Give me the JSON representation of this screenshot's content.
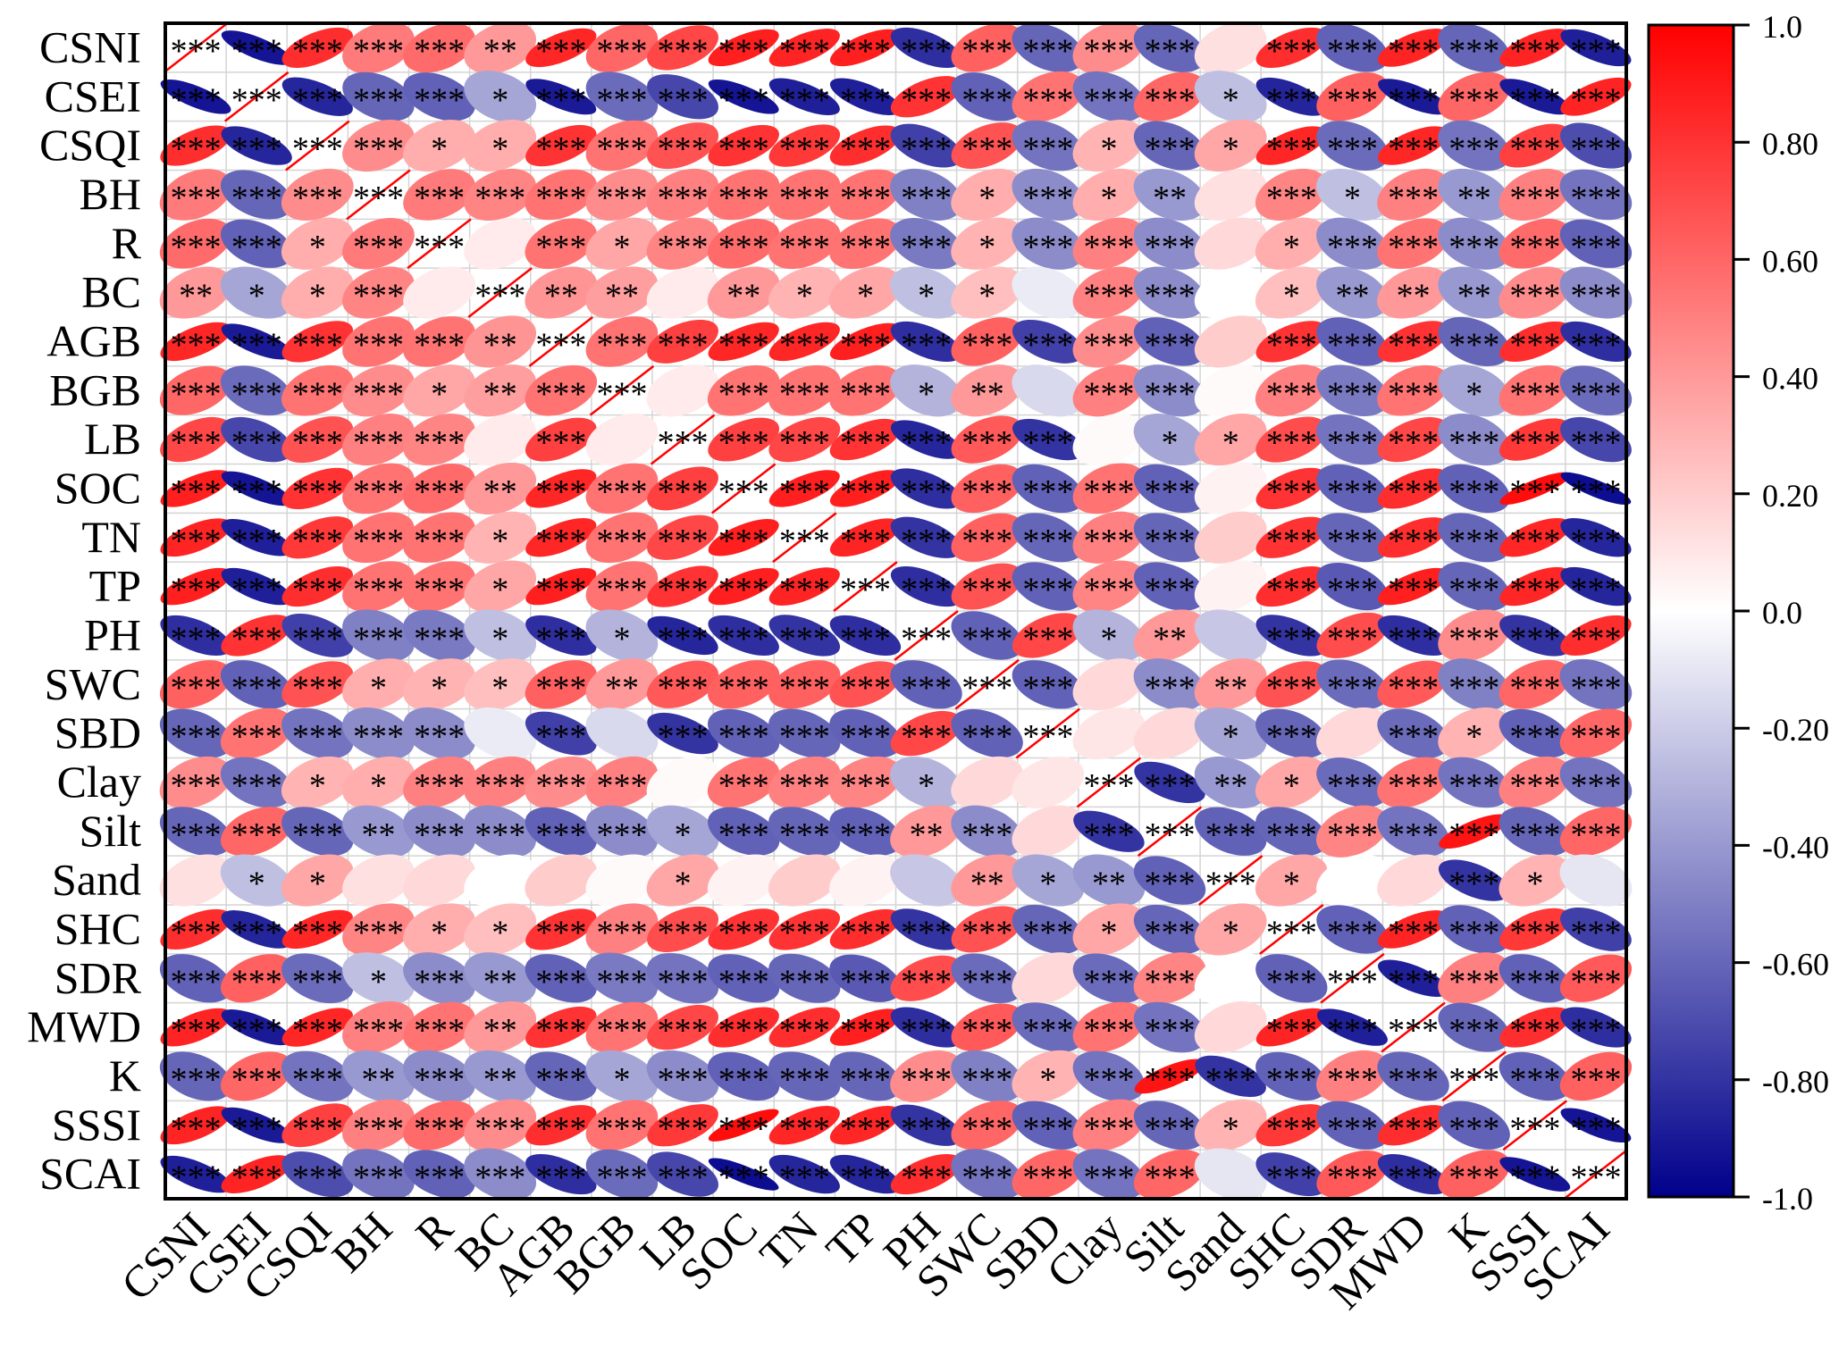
{
  "chart_data": {
    "type": "heatmap",
    "style": "correlation ellipse matrix",
    "variables": [
      "CSNI",
      "CSEI",
      "CSQI",
      "BH",
      "R",
      "BC",
      "AGB",
      "BGB",
      "LB",
      "SOC",
      "TN",
      "TP",
      "PH",
      "SWC",
      "SBD",
      "Clay",
      "Silt",
      "Sand",
      "SHC",
      "SDR",
      "MWD",
      "K",
      "SSSI",
      "SCAI"
    ],
    "colorbar": {
      "ticks": [
        "1.0",
        "0.80",
        "0.60",
        "0.40",
        "0.20",
        "0.0",
        "-0.20",
        "-0.40",
        "-0.60",
        "-0.80",
        "-1.0"
      ],
      "range": [
        -1.0,
        1.0
      ],
      "high_color": "#ff0000",
      "mid_color": "#ffffff",
      "low_color": "#00008b"
    },
    "matrix": [
      [
        1.0,
        -0.92,
        0.82,
        0.52,
        0.58,
        0.4,
        0.85,
        0.6,
        0.72,
        0.88,
        0.86,
        0.88,
        -0.82,
        0.62,
        -0.6,
        0.45,
        -0.6,
        0.12,
        0.82,
        -0.62,
        0.86,
        -0.6,
        0.86,
        -0.88
      ],
      [
        -0.92,
        1.0,
        -0.85,
        -0.6,
        -0.62,
        -0.35,
        -0.9,
        -0.58,
        -0.72,
        -0.92,
        -0.88,
        -0.88,
        0.8,
        -0.62,
        0.55,
        -0.55,
        0.6,
        -0.25,
        -0.86,
        0.62,
        -0.9,
        0.6,
        -0.9,
        0.86
      ],
      [
        0.82,
        -0.85,
        1.0,
        0.45,
        0.32,
        0.32,
        0.8,
        0.55,
        0.68,
        0.8,
        0.78,
        0.82,
        -0.75,
        0.68,
        -0.55,
        0.3,
        -0.6,
        0.35,
        0.85,
        -0.58,
        0.85,
        -0.55,
        0.75,
        -0.7
      ],
      [
        0.52,
        -0.6,
        0.45,
        1.0,
        0.52,
        0.48,
        0.55,
        0.45,
        0.5,
        0.55,
        0.55,
        0.55,
        -0.5,
        0.32,
        -0.45,
        0.32,
        -0.4,
        0.12,
        0.48,
        -0.25,
        0.5,
        -0.4,
        0.5,
        -0.55
      ],
      [
        0.58,
        -0.62,
        0.32,
        0.52,
        1.0,
        0.08,
        0.55,
        0.35,
        0.48,
        0.58,
        0.55,
        0.55,
        -0.52,
        0.3,
        -0.45,
        0.5,
        -0.45,
        0.15,
        0.32,
        -0.45,
        0.55,
        -0.45,
        0.58,
        -0.62
      ],
      [
        0.4,
        -0.35,
        0.32,
        0.48,
        0.08,
        1.0,
        0.42,
        0.38,
        0.08,
        0.4,
        0.3,
        0.35,
        -0.25,
        0.25,
        -0.08,
        0.5,
        -0.45,
        0.0,
        0.25,
        -0.4,
        0.4,
        -0.4,
        0.45,
        -0.45
      ],
      [
        0.85,
        -0.9,
        0.8,
        0.55,
        0.55,
        0.42,
        1.0,
        0.55,
        0.75,
        0.85,
        0.85,
        0.88,
        -0.82,
        0.62,
        -0.75,
        0.45,
        -0.62,
        0.2,
        0.8,
        -0.62,
        0.8,
        -0.6,
        0.82,
        -0.82
      ],
      [
        0.6,
        -0.58,
        0.55,
        0.45,
        0.35,
        0.38,
        0.55,
        1.0,
        0.08,
        0.55,
        0.55,
        0.55,
        -0.3,
        0.4,
        -0.15,
        0.5,
        -0.45,
        0.02,
        0.5,
        -0.52,
        0.55,
        -0.35,
        0.55,
        -0.58
      ],
      [
        0.72,
        -0.72,
        0.68,
        0.5,
        0.48,
        0.08,
        0.75,
        0.08,
        1.0,
        0.75,
        0.72,
        0.8,
        -0.85,
        0.65,
        -0.8,
        0.02,
        -0.35,
        0.35,
        0.7,
        -0.55,
        0.72,
        -0.45,
        0.78,
        -0.72
      ],
      [
        0.88,
        -0.92,
        0.8,
        0.55,
        0.58,
        0.4,
        0.85,
        0.55,
        0.75,
        1.0,
        0.88,
        0.88,
        -0.82,
        0.62,
        -0.62,
        0.55,
        -0.62,
        0.05,
        0.8,
        -0.62,
        0.82,
        -0.62,
        0.95,
        -0.95
      ],
      [
        0.86,
        -0.88,
        0.78,
        0.55,
        0.55,
        0.3,
        0.85,
        0.55,
        0.72,
        0.88,
        1.0,
        0.86,
        -0.8,
        0.62,
        -0.6,
        0.5,
        -0.6,
        0.2,
        0.8,
        -0.6,
        0.82,
        -0.6,
        0.85,
        -0.85
      ],
      [
        0.88,
        -0.88,
        0.82,
        0.55,
        0.55,
        0.35,
        0.88,
        0.55,
        0.8,
        0.88,
        0.86,
        1.0,
        -0.82,
        0.68,
        -0.62,
        0.48,
        -0.62,
        0.05,
        0.82,
        -0.65,
        0.88,
        -0.6,
        0.85,
        -0.85
      ],
      [
        -0.82,
        0.8,
        -0.75,
        -0.5,
        -0.52,
        -0.25,
        -0.82,
        -0.3,
        -0.85,
        -0.82,
        -0.8,
        -0.82,
        1.0,
        -0.62,
        0.72,
        -0.3,
        0.4,
        -0.22,
        -0.8,
        0.7,
        -0.82,
        0.45,
        -0.8,
        0.82
      ],
      [
        0.62,
        -0.62,
        0.68,
        0.32,
        0.3,
        0.25,
        0.62,
        0.4,
        0.65,
        0.62,
        0.62,
        0.68,
        -0.62,
        1.0,
        -0.62,
        0.15,
        -0.45,
        0.4,
        0.68,
        -0.58,
        0.65,
        -0.5,
        0.6,
        -0.55
      ],
      [
        -0.6,
        0.55,
        -0.55,
        -0.45,
        -0.45,
        -0.08,
        -0.75,
        -0.15,
        -0.8,
        -0.62,
        -0.6,
        -0.62,
        0.72,
        -0.62,
        1.0,
        0.1,
        0.15,
        -0.35,
        -0.6,
        0.15,
        -0.58,
        0.3,
        -0.62,
        0.6
      ],
      [
        0.45,
        -0.55,
        0.3,
        0.32,
        0.5,
        0.5,
        0.45,
        0.5,
        0.02,
        0.55,
        0.5,
        0.48,
        -0.3,
        0.15,
        0.1,
        1.0,
        -0.8,
        -0.4,
        0.35,
        -0.58,
        0.55,
        -0.55,
        0.5,
        -0.55
      ],
      [
        -0.6,
        0.6,
        -0.6,
        -0.4,
        -0.45,
        -0.45,
        -0.62,
        -0.45,
        -0.35,
        -0.62,
        -0.6,
        -0.62,
        0.4,
        -0.45,
        0.15,
        -0.8,
        1.0,
        -0.62,
        -0.6,
        0.48,
        -0.55,
        0.92,
        -0.6,
        0.6
      ],
      [
        0.12,
        -0.25,
        0.35,
        0.12,
        0.15,
        0.0,
        0.2,
        0.02,
        0.35,
        0.05,
        0.2,
        0.05,
        -0.22,
        0.4,
        -0.35,
        -0.4,
        -0.62,
        1.0,
        0.35,
        0.0,
        0.15,
        -0.8,
        0.3,
        -0.1
      ],
      [
        0.82,
        -0.86,
        0.85,
        0.48,
        0.32,
        0.25,
        0.8,
        0.5,
        0.7,
        0.8,
        0.8,
        0.82,
        -0.8,
        0.68,
        -0.6,
        0.35,
        -0.6,
        0.35,
        1.0,
        -0.62,
        0.86,
        -0.62,
        0.78,
        -0.75
      ],
      [
        -0.62,
        0.62,
        -0.58,
        -0.25,
        -0.45,
        -0.4,
        -0.62,
        -0.52,
        -0.55,
        -0.62,
        -0.6,
        -0.65,
        0.7,
        -0.58,
        0.15,
        -0.58,
        0.48,
        0.0,
        -0.62,
        1.0,
        -0.88,
        0.5,
        -0.62,
        0.65
      ],
      [
        0.86,
        -0.9,
        0.85,
        0.5,
        0.55,
        0.4,
        0.8,
        0.55,
        0.72,
        0.82,
        0.82,
        0.88,
        -0.82,
        0.65,
        -0.58,
        0.55,
        -0.55,
        0.15,
        0.86,
        -0.88,
        1.0,
        -0.6,
        0.82,
        -0.82
      ],
      [
        -0.6,
        0.6,
        -0.55,
        -0.4,
        -0.45,
        -0.4,
        -0.6,
        -0.35,
        -0.45,
        -0.62,
        -0.6,
        -0.6,
        0.45,
        -0.5,
        0.3,
        -0.55,
        0.92,
        -0.8,
        -0.62,
        0.5,
        -0.6,
        1.0,
        -0.62,
        0.62
      ],
      [
        0.86,
        -0.9,
        0.75,
        0.5,
        0.58,
        0.45,
        0.82,
        0.55,
        0.78,
        0.95,
        0.85,
        0.85,
        -0.8,
        0.6,
        -0.62,
        0.5,
        -0.6,
        0.3,
        0.78,
        -0.62,
        0.82,
        -0.62,
        1.0,
        -0.92
      ],
      [
        -0.88,
        0.86,
        -0.7,
        -0.55,
        -0.62,
        -0.45,
        -0.82,
        -0.58,
        -0.72,
        -0.95,
        -0.85,
        -0.85,
        0.82,
        -0.55,
        0.6,
        -0.55,
        0.6,
        -0.1,
        -0.75,
        0.65,
        -0.82,
        0.62,
        -0.92,
        1.0
      ]
    ]
  }
}
